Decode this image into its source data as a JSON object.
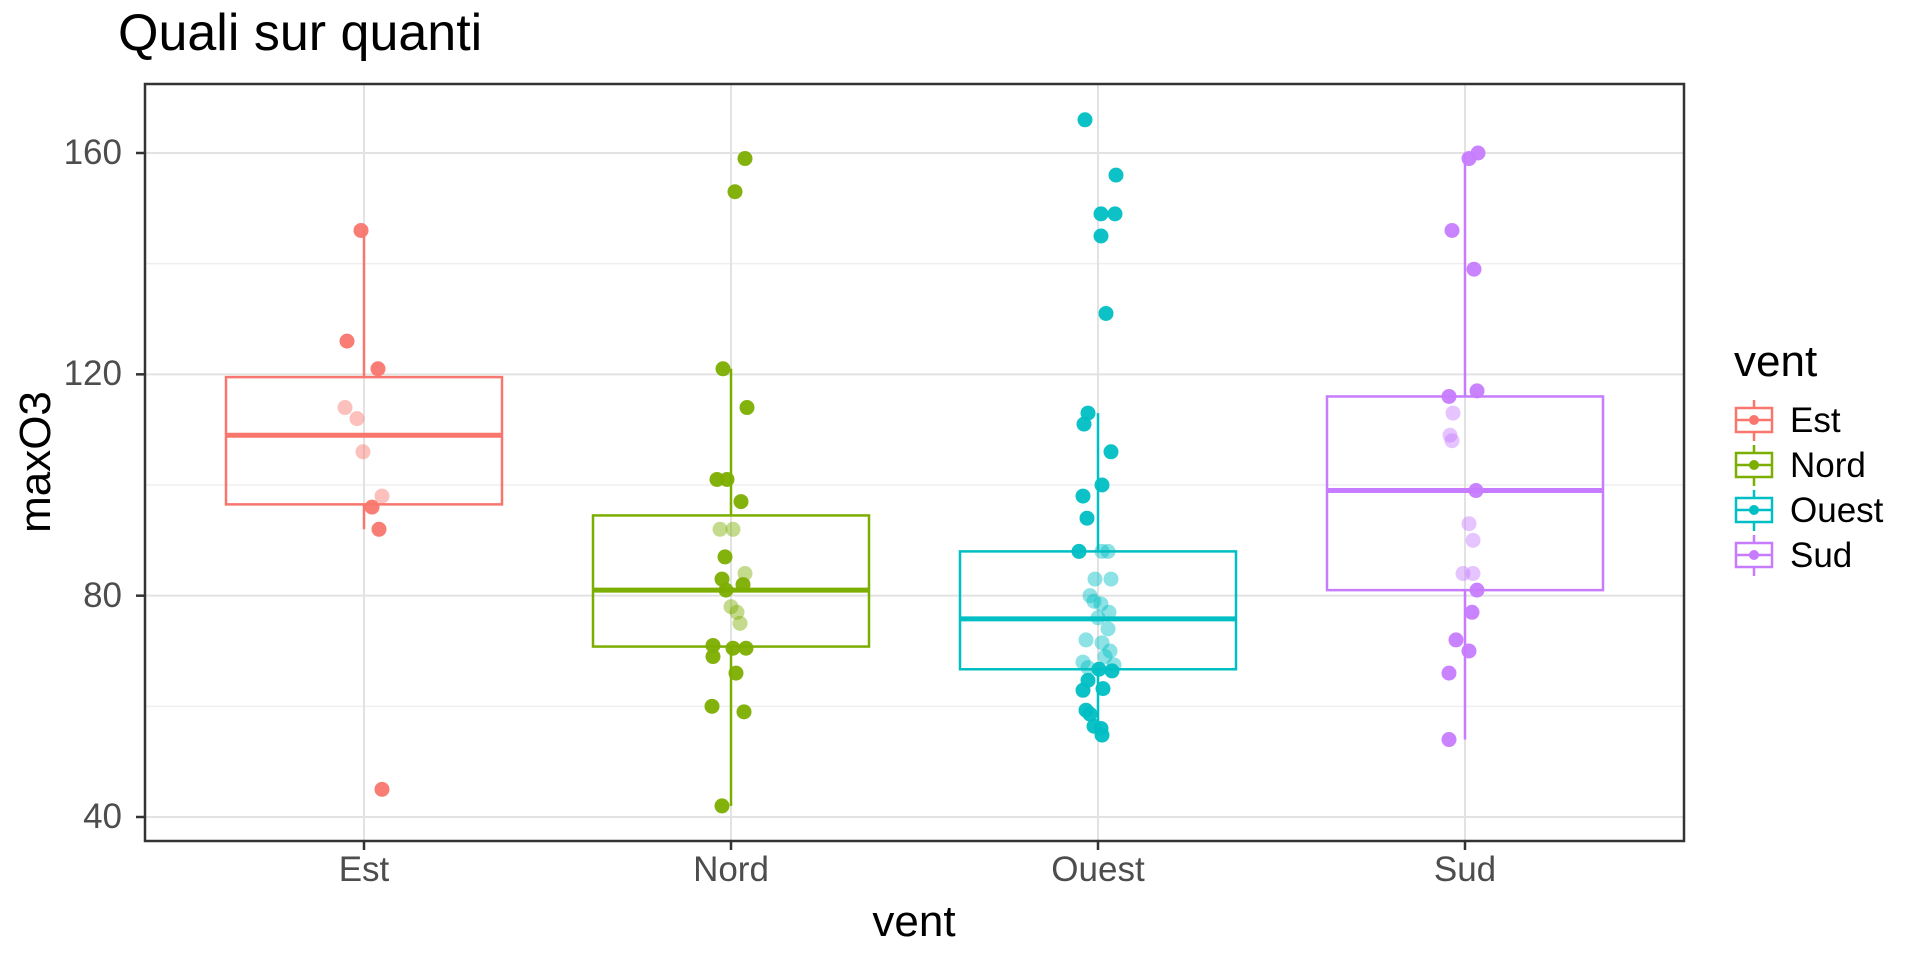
{
  "title": "Quali sur quanti",
  "axes": {
    "x_title": "vent",
    "y_title": "maxO3",
    "y_tick_labels": [
      "160",
      "120",
      "80",
      "40"
    ],
    "x_tick_labels": [
      "Est",
      "Nord",
      "Ouest",
      "Sud"
    ]
  },
  "legend": {
    "title": "vent",
    "items": [
      {
        "label": "Est",
        "color": "#F8766D"
      },
      {
        "label": "Nord",
        "color": "#7CAE00"
      },
      {
        "label": "Ouest",
        "color": "#00BFC4"
      },
      {
        "label": "Sud",
        "color": "#C77CFF"
      }
    ]
  },
  "colors": {
    "axis_text": "#4D4D4D",
    "panel_border": "#333333",
    "grid_major": "#E2E2E2",
    "grid_minor": "#EFEFEF",
    "background": "#FFFFFF"
  },
  "chart_data": {
    "type": "boxplot",
    "title": "Quali sur quanti",
    "xlabel": "vent",
    "ylabel": "maxO3",
    "categories": [
      "Est",
      "Nord",
      "Ouest",
      "Sud"
    ],
    "ylim": [
      35.7,
      172.5
    ],
    "y_major_gridlines": [
      160,
      120,
      80,
      40
    ],
    "y_minor_gridlines": [
      140,
      100,
      60
    ],
    "legend_position": "right",
    "point_style": {
      "radius": 7.5,
      "opacity_solid": 0.95,
      "opacity_faded": 0.45
    },
    "groups": [
      {
        "name": "Est",
        "color": "#F8766D",
        "box": {
          "q1": 96.5,
          "median": 109,
          "q3": 119.5,
          "whisker_low": 92,
          "whisker_high": 146
        },
        "points": [
          [
            146,
            -3,
            1
          ],
          [
            126,
            -17,
            1
          ],
          [
            121,
            14,
            1
          ],
          [
            114,
            -19,
            0
          ],
          [
            112,
            -7,
            0
          ],
          [
            106,
            -1,
            0
          ],
          [
            98,
            18,
            0
          ],
          [
            96,
            8,
            1
          ],
          [
            92,
            15,
            1
          ],
          [
            45,
            18,
            1
          ]
        ]
      },
      {
        "name": "Nord",
        "color": "#7CAE00",
        "box": {
          "q1": 70.8,
          "median": 81,
          "q3": 94.5,
          "whisker_low": 42,
          "whisker_high": 121
        },
        "points": [
          [
            159,
            14,
            1
          ],
          [
            153,
            4,
            1
          ],
          [
            121,
            -8,
            1
          ],
          [
            114,
            16,
            1
          ],
          [
            101,
            -14,
            1
          ],
          [
            101,
            -4,
            1
          ],
          [
            97,
            10,
            1
          ],
          [
            92,
            -11,
            0
          ],
          [
            92,
            2,
            0
          ],
          [
            87,
            -6,
            1
          ],
          [
            84,
            14,
            0
          ],
          [
            83,
            -9,
            1
          ],
          [
            82,
            12,
            1
          ],
          [
            81,
            -5,
            1
          ],
          [
            78,
            0,
            0
          ],
          [
            77,
            6,
            0
          ],
          [
            75,
            9,
            0
          ],
          [
            71,
            -18,
            1
          ],
          [
            70.5,
            2,
            1
          ],
          [
            70.5,
            15,
            1
          ],
          [
            69,
            -18,
            1
          ],
          [
            66,
            5,
            1
          ],
          [
            60,
            -19,
            1
          ],
          [
            59,
            13,
            1
          ],
          [
            42,
            -9,
            1
          ]
        ]
      },
      {
        "name": "Ouest",
        "color": "#00BFC4",
        "box": {
          "q1": 66.7,
          "median": 75.8,
          "q3": 88,
          "whisker_low": 57,
          "whisker_high": 113
        },
        "points": [
          [
            166,
            -13,
            1
          ],
          [
            156,
            18,
            1
          ],
          [
            149,
            3,
            1
          ],
          [
            149,
            17,
            1
          ],
          [
            145,
            3,
            1
          ],
          [
            131,
            8,
            1
          ],
          [
            113,
            -10,
            1
          ],
          [
            111,
            -14,
            1
          ],
          [
            106,
            13,
            1
          ],
          [
            100,
            4,
            1
          ],
          [
            98,
            -15,
            1
          ],
          [
            94,
            -11,
            1
          ],
          [
            88,
            -19,
            1
          ],
          [
            88,
            4,
            0
          ],
          [
            88,
            10,
            0
          ],
          [
            83,
            -3,
            0
          ],
          [
            83,
            13,
            0
          ],
          [
            80,
            -8,
            0
          ],
          [
            79,
            -4,
            0
          ],
          [
            78.5,
            3,
            0
          ],
          [
            77,
            11,
            0
          ],
          [
            76,
            0,
            0
          ],
          [
            74,
            10,
            0
          ],
          [
            72,
            -12,
            0
          ],
          [
            71.5,
            4,
            0
          ],
          [
            70,
            12,
            0
          ],
          [
            69,
            7,
            0
          ],
          [
            68,
            -15,
            0
          ],
          [
            67.5,
            16,
            0
          ],
          [
            67,
            -10,
            0
          ],
          [
            66.7,
            1,
            1
          ],
          [
            66.4,
            14,
            1
          ],
          [
            64.7,
            -10,
            1
          ],
          [
            63.2,
            5,
            1
          ],
          [
            62.9,
            -15,
            1
          ],
          [
            59.3,
            -12,
            1
          ],
          [
            58.6,
            -8,
            1
          ],
          [
            56.4,
            -4,
            1
          ],
          [
            56,
            3,
            1
          ],
          [
            54.8,
            4,
            1
          ]
        ]
      },
      {
        "name": "Sud",
        "color": "#C77CFF",
        "box": {
          "q1": 81,
          "median": 99,
          "q3": 116,
          "whisker_low": 54,
          "whisker_high": 160
        },
        "points": [
          [
            160,
            13,
            1
          ],
          [
            159,
            4,
            1
          ],
          [
            146,
            -13,
            1
          ],
          [
            139,
            9,
            1
          ],
          [
            117,
            12,
            1
          ],
          [
            116,
            -16,
            1
          ],
          [
            113,
            -12,
            0
          ],
          [
            109,
            -15,
            0
          ],
          [
            108,
            -13,
            0
          ],
          [
            99,
            11,
            1
          ],
          [
            93,
            4,
            0
          ],
          [
            90,
            8,
            0
          ],
          [
            84,
            -2,
            0
          ],
          [
            84,
            8,
            0
          ],
          [
            81,
            12,
            1
          ],
          [
            77,
            7,
            1
          ],
          [
            72,
            -9,
            1
          ],
          [
            70,
            4,
            1
          ],
          [
            66,
            -16,
            1
          ],
          [
            54,
            -16,
            1
          ]
        ]
      }
    ]
  }
}
